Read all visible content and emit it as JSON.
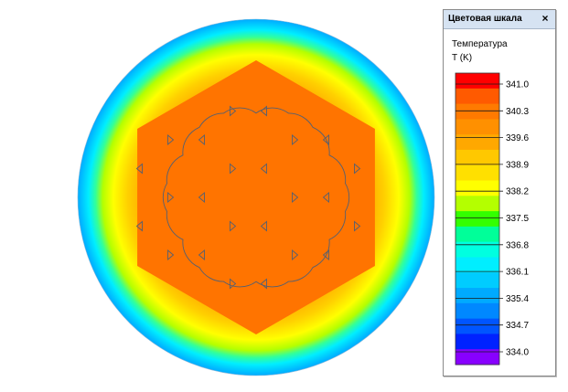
{
  "legend_window": {
    "title": "Цветовая шкала",
    "close_glyph": "×",
    "quantity_label": "Температура",
    "unit_label": "T (K)"
  },
  "color_scale": {
    "min": 334.0,
    "max": 341.0,
    "tick_labels": [
      "341.0",
      "340.3",
      "339.6",
      "338.9",
      "338.2",
      "337.5",
      "336.8",
      "336.1",
      "335.4",
      "334.7",
      "334.0"
    ],
    "bands_top_to_bottom": [
      "#ff0000",
      "#ff5a00",
      "#ff7a00",
      "#ff9000",
      "#ffa800",
      "#ffc800",
      "#ffe000",
      "#ffff00",
      "#b4ff00",
      "#33ff00",
      "#00ff99",
      "#00ffe0",
      "#00eeff",
      "#00ccff",
      "#00aaff",
      "#0088ff",
      "#0055ff",
      "#0022ff",
      "#8800ff"
    ]
  },
  "field": {
    "core_color": "#ff7400",
    "core_shade": "#fe6c00",
    "outer_gradient": [
      "#00aaff",
      "#00ccff",
      "#00eeff",
      "#33ff99",
      "#b4ff00",
      "#ffff00",
      "#ffd000",
      "#ffa000",
      "#ff8400"
    ],
    "outline_color": "#556070",
    "marker_color": "#556070",
    "marker_rows": [
      {
        "row": 0,
        "markers": [
          {
            "col": 0,
            "dir": "right"
          },
          {
            "col": 1,
            "dir": "left"
          }
        ]
      },
      {
        "row": 1,
        "markers": [
          {
            "col": -2,
            "dir": "right"
          },
          {
            "col": -1,
            "dir": "left"
          },
          {
            "col": 2,
            "dir": "right"
          },
          {
            "col": 3,
            "dir": "left"
          }
        ]
      },
      {
        "row": 2,
        "markers": [
          {
            "col": -3,
            "dir": "left"
          },
          {
            "col": 0,
            "dir": "right"
          },
          {
            "col": 1,
            "dir": "left"
          },
          {
            "col": 4,
            "dir": "right"
          }
        ]
      },
      {
        "row": 3,
        "markers": [
          {
            "col": -2,
            "dir": "right"
          },
          {
            "col": -1,
            "dir": "left"
          },
          {
            "col": 2,
            "dir": "right"
          },
          {
            "col": 3,
            "dir": "left"
          }
        ]
      },
      {
        "row": 4,
        "markers": [
          {
            "col": -3,
            "dir": "left"
          },
          {
            "col": 0,
            "dir": "right"
          },
          {
            "col": 1,
            "dir": "left"
          },
          {
            "col": 4,
            "dir": "right"
          }
        ]
      },
      {
        "row": 5,
        "markers": [
          {
            "col": -2,
            "dir": "right"
          },
          {
            "col": -1,
            "dir": "left"
          },
          {
            "col": 2,
            "dir": "right"
          },
          {
            "col": 3,
            "dir": "left"
          }
        ]
      },
      {
        "row": 6,
        "markers": [
          {
            "col": 0,
            "dir": "right"
          },
          {
            "col": 1,
            "dir": "left"
          }
        ]
      }
    ]
  }
}
